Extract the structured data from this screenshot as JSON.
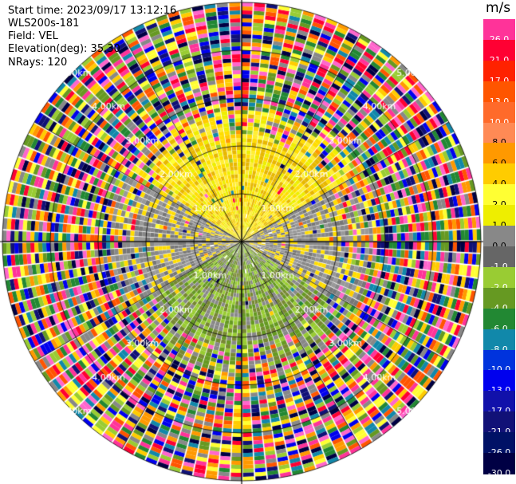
{
  "info": {
    "start_time": "Start time: 2023/09/17 13:12:16",
    "site": "WLS200s-181",
    "field": "Field: VEL",
    "elevation": "Elevation(deg): 35.30",
    "nrays": "NRays: 120"
  },
  "units": "m/s",
  "colorbar": {
    "levels": [
      {
        "label": "26.0",
        "color": "#ff3399"
      },
      {
        "label": "21.0",
        "color": "#ff0033"
      },
      {
        "label": "17.0",
        "color": "#ff2200"
      },
      {
        "label": "13.0",
        "color": "#ff5500"
      },
      {
        "label": "10.0",
        "color": "#ff6a2a"
      },
      {
        "label": "8.0",
        "color": "#ff8a55"
      },
      {
        "label": "6.0",
        "color": "#ff9900"
      },
      {
        "label": "4.0",
        "color": "#ffcc00"
      },
      {
        "label": "2.0",
        "color": "#ffff33"
      },
      {
        "label": "1.0",
        "color": "#eeee00"
      },
      {
        "label": "0.0",
        "color": "#888888"
      },
      {
        "label": "-1.0",
        "color": "#666666"
      },
      {
        "label": "-2.0",
        "color": "#99cc33"
      },
      {
        "label": "-4.0",
        "color": "#669922"
      },
      {
        "label": "-6.0",
        "color": "#228833"
      },
      {
        "label": "-8.0",
        "color": "#1188aa"
      },
      {
        "label": "-10.0",
        "color": "#0033dd"
      },
      {
        "label": "-13.0",
        "color": "#0000ee"
      },
      {
        "label": "-17.0",
        "color": "#1111aa"
      },
      {
        "label": "-21.0",
        "color": "#111177"
      },
      {
        "label": "-26.0",
        "color": "#001166"
      },
      {
        "label": "-30.0",
        "color": "#000044"
      }
    ]
  },
  "range_labels": [
    "1.00km",
    "2.00km",
    "3.00km",
    "4.00km",
    "5.00km"
  ],
  "ppi": {
    "n_rays": 120,
    "noise_colors": [
      "#ff3399",
      "#ff0033",
      "#ff5500",
      "#ff9900",
      "#ffcc00",
      "#ffff33",
      "#888888",
      "#99cc33",
      "#669922",
      "#228833",
      "#1188aa",
      "#0000ee",
      "#111177",
      "#000044",
      "#ff66cc"
    ],
    "near_north_colors": [
      "#ffdd00",
      "#ffee33",
      "#e8b800",
      "#eeee00"
    ],
    "near_south_colors": [
      "#99cc33",
      "#669922",
      "#778833",
      "#888888"
    ],
    "near_side_colors": [
      "#888888",
      "#777777",
      "#999999",
      "#ffdd00"
    ]
  }
}
